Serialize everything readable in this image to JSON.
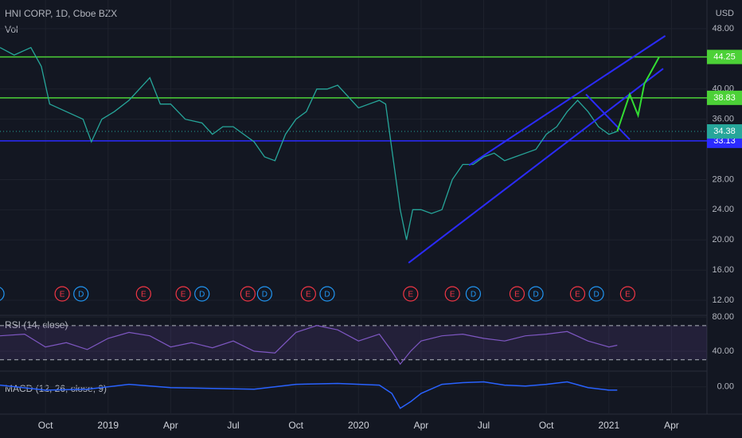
{
  "chart_data": {
    "type": "line",
    "title": "HNI CORP, 1D, Cboe BZX",
    "volume_label": "Vol",
    "currency": "USD",
    "xlim": [
      0.82,
      34.7
    ],
    "xticks": [
      {
        "value": 3,
        "label": "Oct"
      },
      {
        "value": 6,
        "label": "2019"
      },
      {
        "value": 9,
        "label": "Apr"
      },
      {
        "value": 12,
        "label": "Jul"
      },
      {
        "value": 15,
        "label": "Oct"
      },
      {
        "value": 18,
        "label": "2020"
      },
      {
        "value": 21,
        "label": "Apr"
      },
      {
        "value": 24,
        "label": "Jul"
      },
      {
        "value": 27,
        "label": "Oct"
      },
      {
        "value": 30,
        "label": "2021"
      },
      {
        "value": 33,
        "label": "Apr"
      }
    ],
    "ylim": [
      10.1,
      51.8
    ],
    "yticks": [
      {
        "value": 12,
        "label": "12.00"
      },
      {
        "value": 16,
        "label": "16.00"
      },
      {
        "value": 20,
        "label": "20.00"
      },
      {
        "value": 24,
        "label": "24.00"
      },
      {
        "value": 28,
        "label": "28.00"
      },
      {
        "value": 36,
        "label": "36.00"
      },
      {
        "value": 40,
        "label": "40.00"
      },
      {
        "value": 48,
        "label": "48.00"
      }
    ],
    "grid": true,
    "price": {
      "color": "#26a69a",
      "x": [
        0.82,
        1.5,
        2.3,
        2.8,
        3.2,
        4,
        4.8,
        5.2,
        5.7,
        6.3,
        7,
        7.5,
        8,
        8.5,
        9,
        9.7,
        10.5,
        11,
        11.5,
        12,
        12.5,
        13,
        13.5,
        14,
        14.5,
        15,
        15.5,
        16,
        16.5,
        17,
        17.5,
        18,
        18.5,
        19,
        19.3,
        19.6,
        20,
        20.3,
        20.6,
        21,
        21.5,
        22,
        22.5,
        23,
        23.5,
        24,
        24.5,
        25,
        25.5,
        26,
        26.5,
        27,
        27.5,
        28,
        28.5,
        29,
        29.5,
        30,
        30.4
      ],
      "values": [
        45.5,
        44.5,
        45.5,
        43,
        38,
        37,
        36,
        33,
        36,
        37,
        38.5,
        40,
        41.5,
        38,
        38,
        36,
        35.5,
        34,
        35,
        35,
        34,
        33,
        31,
        30.5,
        34,
        36,
        37,
        40,
        40,
        40.5,
        39,
        37.5,
        38,
        38.5,
        38,
        32,
        24,
        20,
        24,
        24,
        23.5,
        24,
        28,
        30,
        30,
        31,
        31.5,
        30.5,
        31,
        31.5,
        32,
        34,
        35,
        37,
        38.5,
        37,
        35,
        34,
        34.38
      ]
    },
    "levels": [
      {
        "value": 44.25,
        "color": "#4cd137"
      },
      {
        "value": 38.83,
        "color": "#4cd137"
      },
      {
        "value": 33.13,
        "color": "#2b2bff"
      },
      {
        "value": 34.38,
        "color": "#26a69a"
      }
    ],
    "trend_lines": [
      {
        "color": "#2b2bff",
        "x": [
          20.4,
          32.6
        ],
        "values": [
          16.95,
          42.7
        ]
      },
      {
        "color": "#2b2bff",
        "x": [
          23.3,
          32.7
        ],
        "values": [
          29.9,
          47.05
        ]
      },
      {
        "color": "#2b2bff",
        "x": [
          28.9,
          31
        ],
        "values": [
          39.3,
          33.3
        ]
      }
    ],
    "projection": {
      "color": "#33dd33",
      "x": [
        30.4,
        31,
        31.4,
        31.7,
        32.4
      ],
      "values": [
        34.4,
        39.3,
        36.5,
        40.7,
        44.2
      ]
    },
    "events": [
      {
        "x": 0.67,
        "label": "D"
      },
      {
        "x": 3.8,
        "label": "E"
      },
      {
        "x": 4.7,
        "label": "D"
      },
      {
        "x": 7.7,
        "label": "E"
      },
      {
        "x": 9.6,
        "label": "E"
      },
      {
        "x": 10.5,
        "label": "D"
      },
      {
        "x": 12.7,
        "label": "E"
      },
      {
        "x": 13.5,
        "label": "D"
      },
      {
        "x": 15.6,
        "label": "E"
      },
      {
        "x": 16.5,
        "label": "D"
      },
      {
        "x": 20.5,
        "label": "E"
      },
      {
        "x": 22.5,
        "label": "E"
      },
      {
        "x": 23.5,
        "label": "D"
      },
      {
        "x": 25.6,
        "label": "E"
      },
      {
        "x": 26.5,
        "label": "D"
      },
      {
        "x": 28.5,
        "label": "E"
      },
      {
        "x": 29.4,
        "label": "D"
      },
      {
        "x": 30.9,
        "label": "E"
      }
    ],
    "rsi": {
      "title": "RSI (14, close)",
      "color": "#7e57c2",
      "ylim": [
        17.7,
        81
      ],
      "yticks": [
        {
          "value": 40,
          "label": "40.00"
        },
        {
          "value": 80,
          "label": "80.00"
        }
      ],
      "band": [
        70,
        30
      ],
      "x": [
        0.82,
        2,
        3,
        4,
        5,
        6,
        7,
        8,
        9,
        10,
        11,
        12,
        13,
        14,
        15,
        16,
        17,
        18,
        19,
        19.6,
        20,
        20.5,
        21,
        22,
        23,
        24,
        25,
        26,
        27,
        28,
        29,
        30,
        30.4
      ],
      "values": [
        58,
        60,
        45,
        50,
        42,
        55,
        62,
        58,
        45,
        50,
        44,
        52,
        40,
        38,
        62,
        70,
        65,
        52,
        60,
        40,
        25,
        40,
        52,
        58,
        60,
        55,
        52,
        58,
        60,
        63,
        52,
        45,
        47
      ]
    },
    "macd": {
      "title": "MACD (12, 26, close, 9)",
      "color": "#2962ff",
      "ylim": [
        -3.3,
        1.8
      ],
      "yticks": [
        {
          "value": 0,
          "label": "0.00"
        }
      ],
      "x": [
        0.82,
        3,
        5,
        7,
        9,
        11,
        13,
        15,
        17,
        19,
        19.6,
        20,
        20.5,
        21,
        22,
        23,
        24,
        25,
        26,
        27,
        28,
        29,
        30,
        30.4
      ],
      "values": [
        0.2,
        -0.4,
        -0.3,
        0.3,
        -0.1,
        -0.2,
        -0.3,
        0.3,
        0.4,
        0.2,
        -0.8,
        -2.6,
        -1.8,
        -0.8,
        0.3,
        0.5,
        0.6,
        0.2,
        0.1,
        0.3,
        0.6,
        -0.1,
        -0.4,
        -0.4
      ]
    }
  }
}
